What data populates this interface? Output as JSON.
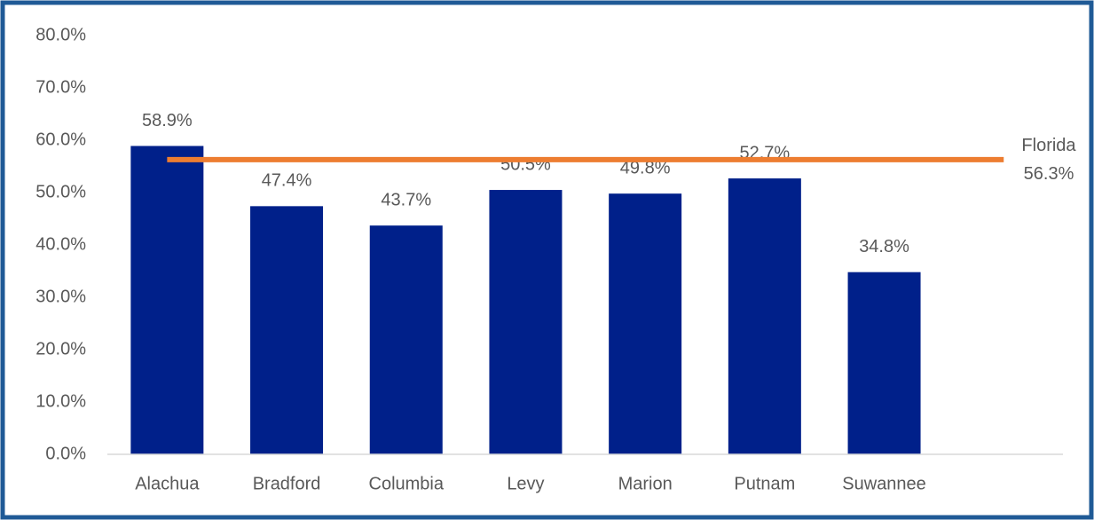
{
  "chart_data": {
    "type": "bar",
    "categories": [
      "Alachua",
      "Bradford",
      "Columbia",
      "Levy",
      "Marion",
      "Putnam",
      "Suwannee"
    ],
    "values": [
      58.9,
      47.4,
      43.7,
      50.5,
      49.8,
      52.7,
      34.8
    ],
    "value_labels": [
      "58.9%",
      "47.4%",
      "43.7%",
      "50.5%",
      "49.8%",
      "52.7%",
      "34.8%"
    ],
    "color": "#00208a",
    "ylim": [
      0,
      80
    ],
    "yticks": [
      {
        "value": 0,
        "label": "0.0%"
      },
      {
        "value": 10,
        "label": "10.0%"
      },
      {
        "value": 20,
        "label": "20.0%"
      },
      {
        "value": 30,
        "label": "30.0%"
      },
      {
        "value": 40,
        "label": "40.0%"
      },
      {
        "value": 50,
        "label": "50.0%"
      },
      {
        "value": 60,
        "label": "60.0%"
      },
      {
        "value": 70,
        "label": "70.0%"
      },
      {
        "value": 80,
        "label": "80.0%"
      }
    ],
    "grid": false,
    "reference_line": {
      "name": "Florida",
      "value": 56.3,
      "label": "56.3%",
      "color": "#ed7d31"
    }
  }
}
